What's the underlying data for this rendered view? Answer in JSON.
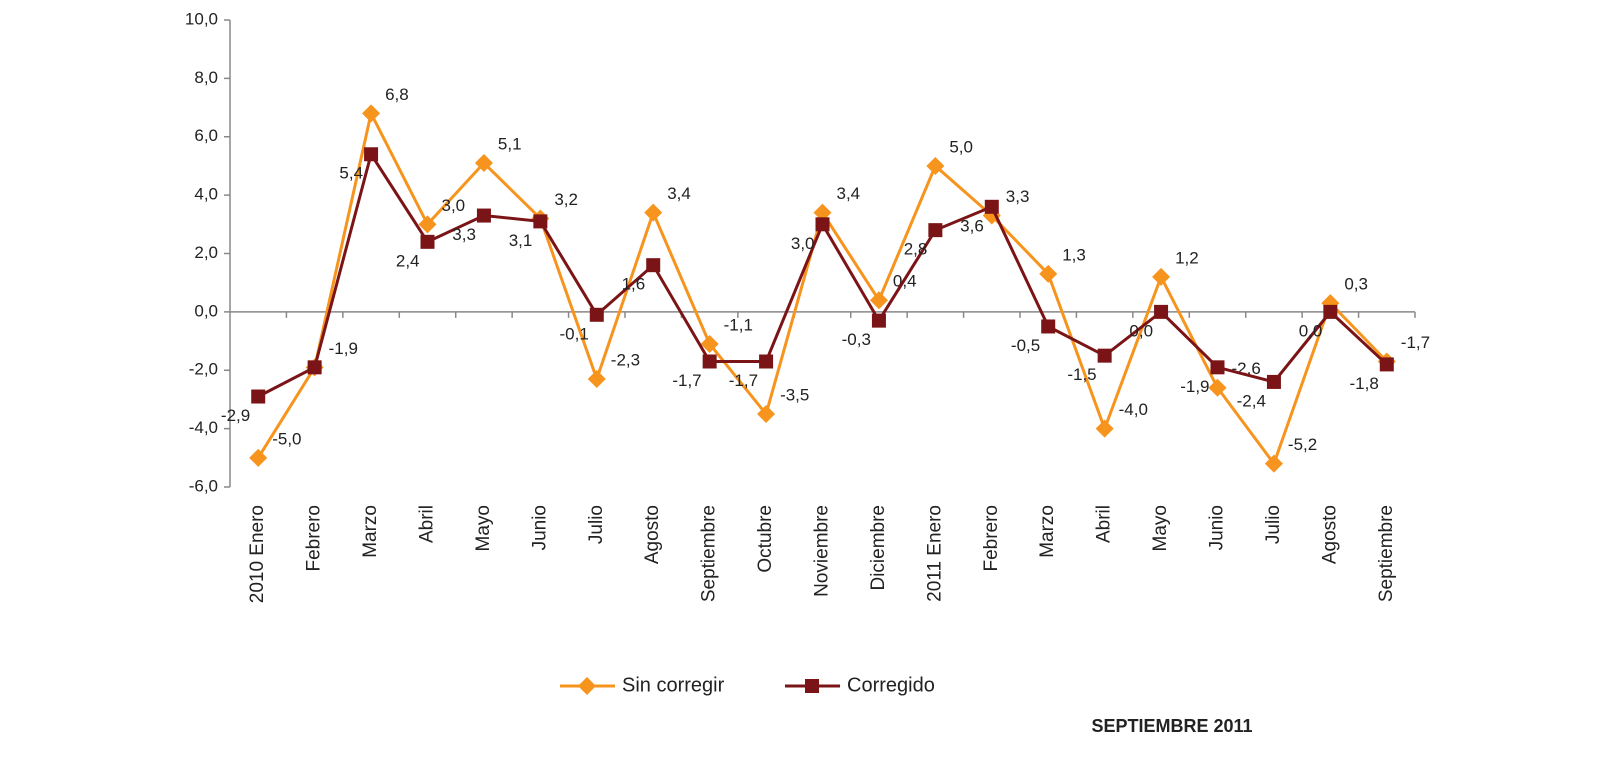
{
  "chart_data": {
    "type": "line",
    "categories": [
      "2010 Enero",
      "Febrero",
      "Marzo",
      "Abril",
      "Mayo",
      "Junio",
      "Julio",
      "Agosto",
      "Septiembre",
      "Octubre",
      "Noviembre",
      "Diciembre",
      "2011 Enero",
      "Febrero",
      "Marzo",
      "Abril",
      "Mayo",
      "Junio",
      "Julio",
      "Agosto",
      "Septiembre"
    ],
    "series": [
      {
        "name": "Sin corregir",
        "color": "#f7941d",
        "marker": "diamond",
        "values": [
          -5.0,
          -1.9,
          6.8,
          3.0,
          5.1,
          3.2,
          -2.3,
          3.4,
          -1.1,
          -3.5,
          3.4,
          0.4,
          5.0,
          3.3,
          1.3,
          -4.0,
          1.2,
          -2.6,
          -5.2,
          0.3,
          -1.7
        ],
        "value_labels": [
          "-5,0",
          "-1,9",
          "6,8",
          "3,0",
          "5,1",
          "3,2",
          "-2,3",
          "3,4",
          "-1,1",
          "-3,5",
          "3,4",
          "0,4",
          "5,0",
          "3,3",
          "1,3",
          "-4,0",
          "1,2",
          "-2,6",
          "-5,2",
          "0,3",
          "-1,7"
        ]
      },
      {
        "name": "Corregido",
        "color": "#7b1416",
        "marker": "square",
        "values": [
          -2.9,
          -1.9,
          5.4,
          2.4,
          3.3,
          3.1,
          -0.1,
          1.6,
          -1.7,
          -1.7,
          3.0,
          -0.3,
          2.8,
          3.6,
          -0.5,
          -1.5,
          0.0,
          -1.9,
          -2.4,
          0.0,
          -1.8
        ],
        "value_labels": [
          "-2,9",
          null,
          "5,4",
          "2,4",
          "3,3",
          "3,1",
          "-0,1",
          "1,6",
          "-1,7",
          "-1,7",
          "3,0",
          "-0,3",
          "2,8",
          "3,6",
          "-0,5",
          "-1,5",
          "0,0",
          "-1,9",
          "-2,4",
          "0,0",
          "-1,8"
        ]
      }
    ],
    "ylim": [
      -6,
      10
    ],
    "yticks": [
      {
        "value": -6,
        "label": "-6,0"
      },
      {
        "value": -4,
        "label": "-4,0"
      },
      {
        "value": -2,
        "label": "-2,0"
      },
      {
        "value": 0,
        "label": "0,0"
      },
      {
        "value": 2,
        "label": "2,0"
      },
      {
        "value": 4,
        "label": "4,0"
      },
      {
        "value": 6,
        "label": "6,0"
      },
      {
        "value": 8,
        "label": "8,0"
      },
      {
        "value": 10,
        "label": "10,0"
      }
    ],
    "legend": "bottom",
    "footer": "SEPTIEMBRE 2011"
  }
}
